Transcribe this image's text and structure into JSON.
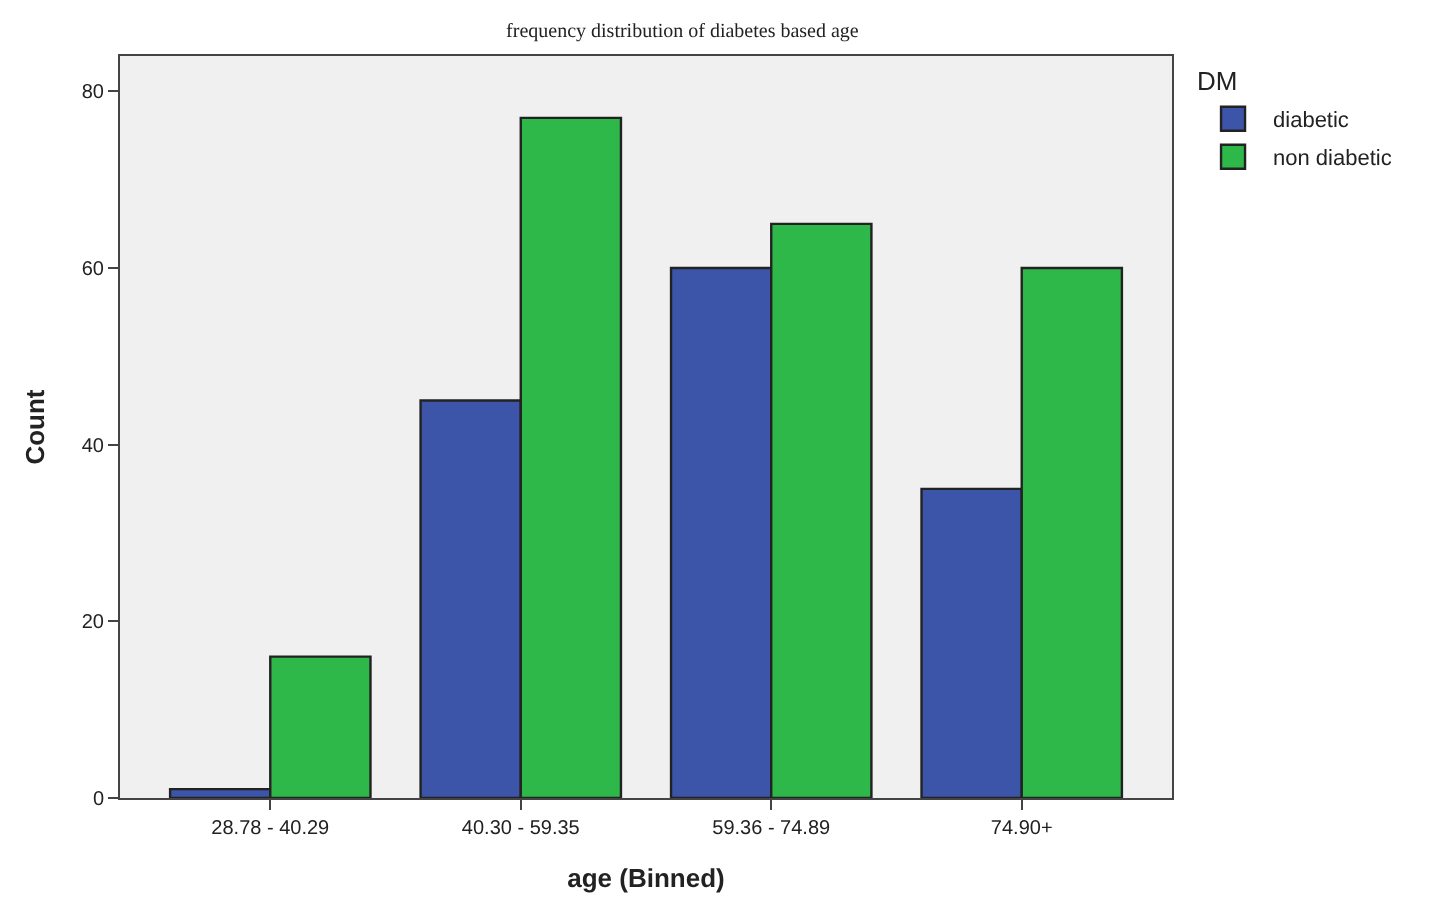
{
  "chart_data": {
    "type": "bar",
    "title": "frequency distribution of diabetes based age",
    "xlabel": "age (Binned)",
    "ylabel": "Count",
    "legend_title": "DM",
    "categories": [
      "28.78 - 40.29",
      "40.30 - 59.35",
      "59.36 - 74.89",
      "74.90+"
    ],
    "series": [
      {
        "name": "diabetic",
        "color": "#3d55a8",
        "values": [
          1,
          45,
          60,
          35
        ]
      },
      {
        "name": "non diabetic",
        "color": "#2fb84a",
        "values": [
          16,
          77,
          65,
          60
        ]
      }
    ],
    "ylim": [
      0,
      84
    ],
    "yticks": [
      0,
      20,
      40,
      60,
      80
    ],
    "grid": false,
    "legend": "top right"
  }
}
